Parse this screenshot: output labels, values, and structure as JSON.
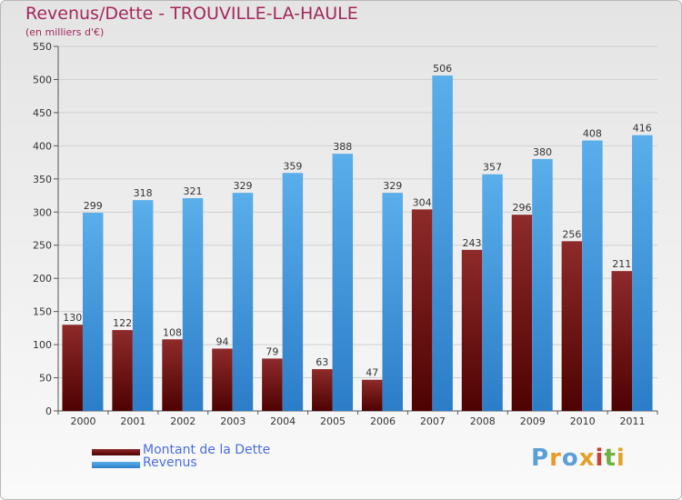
{
  "title": "Revenus/Dette - TROUVILLE-LA-HAULE",
  "subtitle": "(en milliers d'€)",
  "legend": [
    {
      "label": "Montant de la Dette",
      "color": "#8b1a1a"
    },
    {
      "label": "Revenus",
      "color": "#4ba3e3"
    }
  ],
  "logo": {
    "text": "Proxiti",
    "colors": [
      "#5c9fd6",
      "#e89a2a",
      "#5c9fd6",
      "#e2a22a",
      "#c6403a",
      "#6cb240",
      "#e2a22a"
    ]
  },
  "chart_data": {
    "type": "bar",
    "categories": [
      "2000",
      "2001",
      "2002",
      "2003",
      "2004",
      "2005",
      "2006",
      "2007",
      "2008",
      "2009",
      "2010",
      "2011"
    ],
    "series": [
      {
        "name": "Montant de la Dette",
        "color": "#8b1a1a",
        "values": [
          130,
          122,
          108,
          94,
          79,
          63,
          47,
          304,
          243,
          296,
          256,
          211
        ]
      },
      {
        "name": "Revenus",
        "color": "#4ba3e3",
        "values": [
          299,
          318,
          321,
          329,
          359,
          388,
          329,
          506,
          357,
          380,
          408,
          416
        ]
      }
    ],
    "yticks": [
      0,
      50,
      100,
      150,
      200,
      250,
      300,
      350,
      400,
      450,
      500,
      550
    ],
    "ylim": [
      0,
      550
    ],
    "grid": true
  }
}
